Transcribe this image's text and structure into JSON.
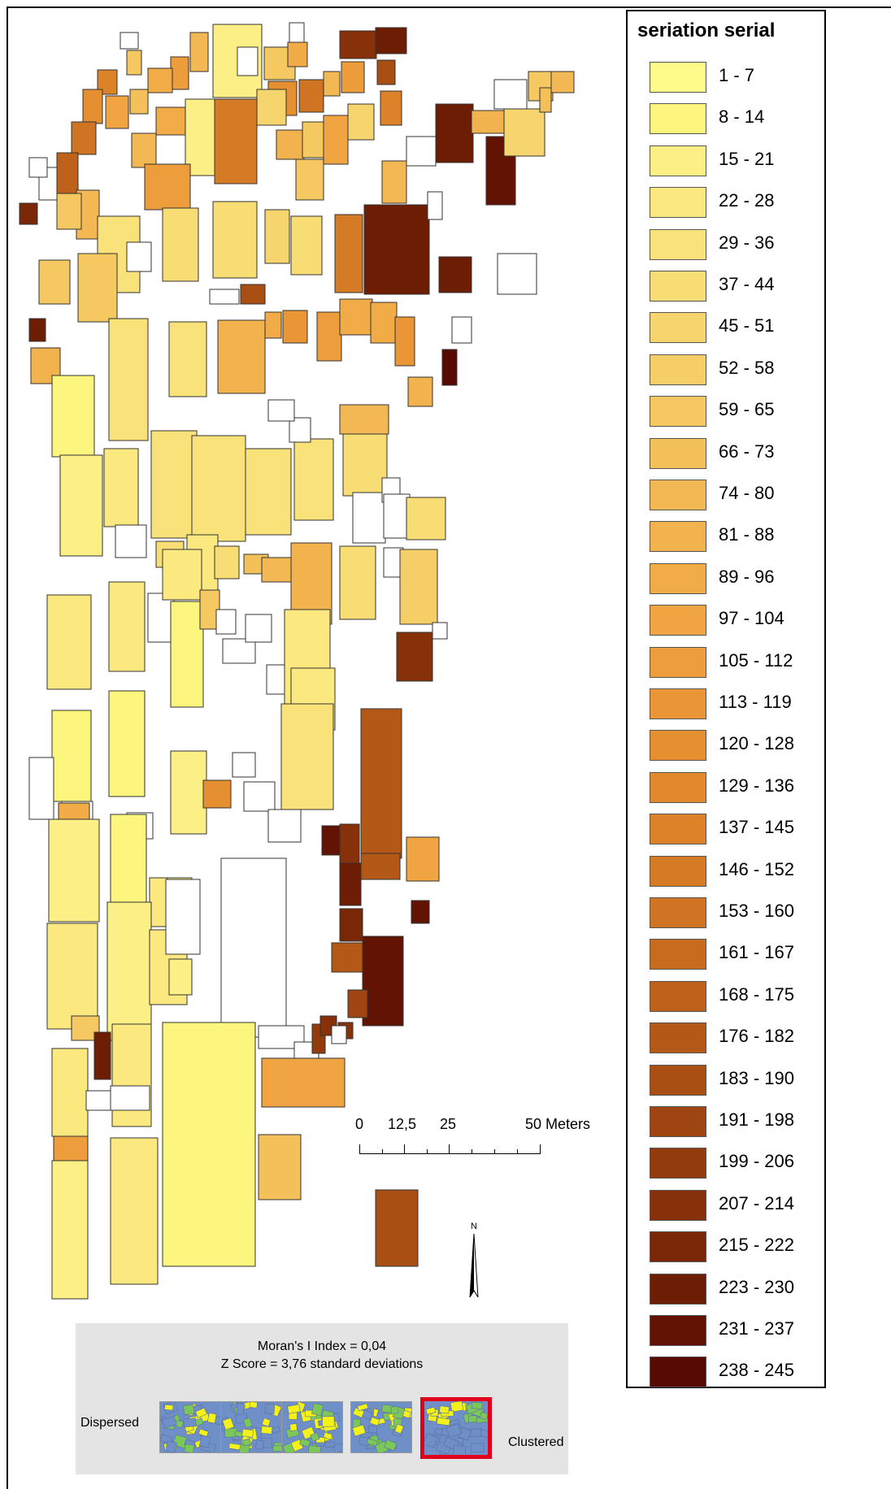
{
  "legend": {
    "title": "seriation serial",
    "classes": [
      {
        "label": "1 - 7",
        "color": "#fdfb8a"
      },
      {
        "label": "8 - 14",
        "color": "#fcf67f"
      },
      {
        "label": "15 - 21",
        "color": "#fbef85"
      },
      {
        "label": "22 - 28",
        "color": "#fbe97f"
      },
      {
        "label": "29 - 36",
        "color": "#f9e27a"
      },
      {
        "label": "37 - 44",
        "color": "#f8dc74"
      },
      {
        "label": "45 - 51",
        "color": "#f7d56e"
      },
      {
        "label": "52 - 58",
        "color": "#f6ce67"
      },
      {
        "label": "59 - 65",
        "color": "#f5c862"
      },
      {
        "label": "66 - 73",
        "color": "#f4c05a"
      },
      {
        "label": "74 - 80",
        "color": "#f3b854"
      },
      {
        "label": "81 - 88",
        "color": "#f2b24d"
      },
      {
        "label": "89 - 96",
        "color": "#f1ab47"
      },
      {
        "label": "97 - 104",
        "color": "#f0a442"
      },
      {
        "label": "105 - 112",
        "color": "#ee9d3c"
      },
      {
        "label": "113 - 119",
        "color": "#ea9636"
      },
      {
        "label": "120 - 128",
        "color": "#e68f31"
      },
      {
        "label": "129 - 136",
        "color": "#e2892d"
      },
      {
        "label": "137 - 145",
        "color": "#dc8229"
      },
      {
        "label": "146 - 152",
        "color": "#d57b26"
      },
      {
        "label": "153 - 160",
        "color": "#ce7423"
      },
      {
        "label": "161 - 167",
        "color": "#c76b1f"
      },
      {
        "label": "168 - 175",
        "color": "#be621b"
      },
      {
        "label": "176 - 182",
        "color": "#b45818"
      },
      {
        "label": "183 - 190",
        "color": "#a94f14"
      },
      {
        "label": "191 - 198",
        "color": "#9e4511"
      },
      {
        "label": "199 - 206",
        "color": "#923b0d"
      },
      {
        "label": "207 - 214",
        "color": "#86310a"
      },
      {
        "label": "215 - 222",
        "color": "#7a2707"
      },
      {
        "label": "223 - 230",
        "color": "#6e1d05"
      },
      {
        "label": "231 - 237",
        "color": "#621303"
      },
      {
        "label": "238 - 245",
        "color": "#560a01"
      }
    ]
  },
  "scalebar": {
    "labels": [
      "0",
      "12,5",
      "25",
      "50 Meters"
    ]
  },
  "north_arrow": {
    "label": "N",
    "icon": "north-arrow-icon"
  },
  "moran": {
    "index_text": "Moran's I Index = 0,04",
    "zscore_text": "Z Score = 3,76 standard deviations",
    "dispersed_label": "Dispersed",
    "clustered_label": "Clustered",
    "selected_pattern": 5,
    "pattern_colors": {
      "yellow": "#f2f21a",
      "blue": "#6f8fc8",
      "green": "#7cc75a"
    }
  },
  "colors": {
    "frame": "#000000",
    "panel_background": "#e4e4e4",
    "selection_outline": "#e0001b",
    "unclassified_parcel": "#ffffff"
  }
}
